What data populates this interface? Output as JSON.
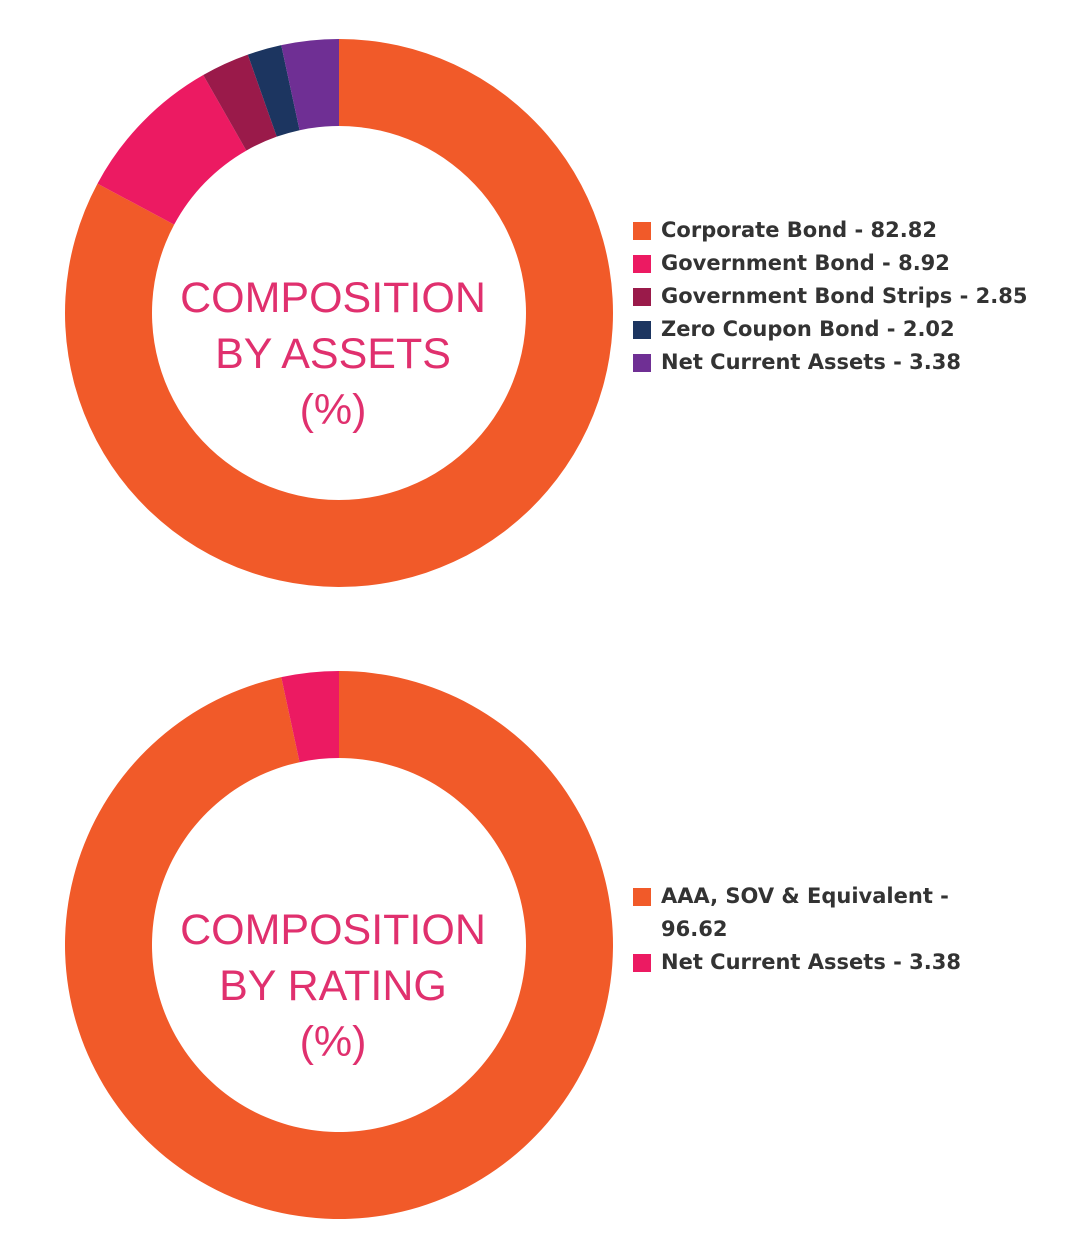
{
  "chart_data": [
    {
      "type": "pie",
      "subtype": "donut",
      "title": "COMPOSITION BY ASSETS (%)",
      "title_lines": [
        "COMPOSITION",
        "BY ASSETS",
        "(%)"
      ],
      "legend_position": "right",
      "slices": [
        {
          "label": "Corporate Bond",
          "value": 82.82,
          "legend": "Corporate Bond - 82.82",
          "color": "#F15A29"
        },
        {
          "label": "Government Bond",
          "value": 8.92,
          "legend": "Government Bond - 8.92",
          "color": "#EC1A62"
        },
        {
          "label": "Government Bond Strips",
          "value": 2.85,
          "legend": "Government Bond Strips - 2.85",
          "color": "#9A1A4A"
        },
        {
          "label": "Zero Coupon Bond",
          "value": 2.02,
          "legend": "Zero Coupon Bond - 2.02",
          "color": "#1C3560"
        },
        {
          "label": "Net Current Assets",
          "value": 3.38,
          "legend": "Net Current Assets - 3.38",
          "color": "#6F2F94"
        }
      ]
    },
    {
      "type": "pie",
      "subtype": "donut",
      "title": "COMPOSITION BY RATING (%)",
      "title_lines": [
        "COMPOSITION",
        "BY RATING",
        "(%)"
      ],
      "legend_position": "right",
      "slices": [
        {
          "label": "AAA, SOV & Equivalent",
          "value": 96.62,
          "legend": "AAA, SOV & Equivalent - 96.62",
          "color": "#F15A29"
        },
        {
          "label": "Net Current Assets",
          "value": 3.38,
          "legend": "Net Current Assets - 3.38",
          "color": "#EC1A62"
        }
      ]
    }
  ]
}
